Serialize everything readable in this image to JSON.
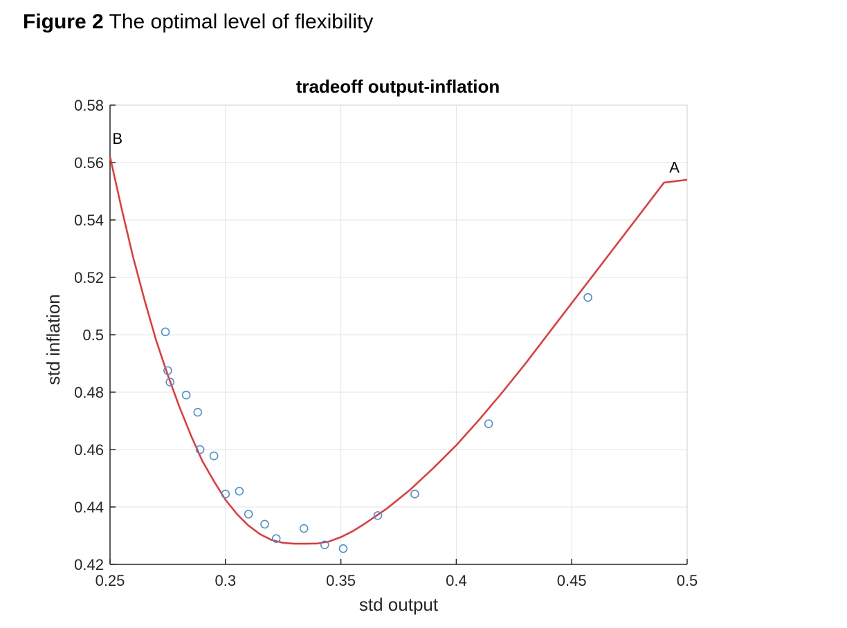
{
  "figure": {
    "label": "Figure 2",
    "caption": " The optimal level of flexibility"
  },
  "chart_data": {
    "type": "scatter",
    "title": "tradeoff output-inflation",
    "xlabel": "std output",
    "ylabel": "std inflation",
    "xlim": [
      0.25,
      0.5
    ],
    "ylim": [
      0.42,
      0.58
    ],
    "xticks": [
      0.25,
      0.3,
      0.35,
      0.4,
      0.45,
      0.5
    ],
    "xtick_labels": [
      "0.25",
      "0.3",
      "0.35",
      "0.4",
      "0.45",
      "0.5"
    ],
    "yticks": [
      0.42,
      0.44,
      0.46,
      0.48,
      0.5,
      0.52,
      0.54,
      0.56,
      0.58
    ],
    "ytick_labels": [
      "0.42",
      "0.44",
      "0.46",
      "0.48",
      "0.5",
      "0.52",
      "0.54",
      "0.56",
      "0.58"
    ],
    "grid": true,
    "series": [
      {
        "name": "observations",
        "kind": "scatter",
        "marker": "circle-open",
        "color": "#4a90d9",
        "points": [
          [
            0.274,
            0.501
          ],
          [
            0.275,
            0.4875
          ],
          [
            0.276,
            0.4835
          ],
          [
            0.283,
            0.479
          ],
          [
            0.288,
            0.473
          ],
          [
            0.289,
            0.46
          ],
          [
            0.295,
            0.4578
          ],
          [
            0.3,
            0.4445
          ],
          [
            0.306,
            0.4455
          ],
          [
            0.31,
            0.4375
          ],
          [
            0.317,
            0.434
          ],
          [
            0.322,
            0.429
          ],
          [
            0.334,
            0.4325
          ],
          [
            0.343,
            0.4268
          ],
          [
            0.351,
            0.4255
          ],
          [
            0.366,
            0.437
          ],
          [
            0.382,
            0.4445
          ],
          [
            0.414,
            0.469
          ],
          [
            0.457,
            0.513
          ]
        ]
      },
      {
        "name": "fitted tradeoff",
        "kind": "line",
        "color": "#ee3333",
        "points": [
          [
            0.25,
            0.562
          ],
          [
            0.255,
            0.544
          ],
          [
            0.26,
            0.527
          ],
          [
            0.265,
            0.512
          ],
          [
            0.27,
            0.498
          ],
          [
            0.275,
            0.486
          ],
          [
            0.28,
            0.475
          ],
          [
            0.285,
            0.465
          ],
          [
            0.29,
            0.456
          ],
          [
            0.295,
            0.449
          ],
          [
            0.3,
            0.4425
          ],
          [
            0.305,
            0.4375
          ],
          [
            0.31,
            0.4335
          ],
          [
            0.315,
            0.4305
          ],
          [
            0.32,
            0.4285
          ],
          [
            0.325,
            0.4275
          ],
          [
            0.33,
            0.4272
          ],
          [
            0.335,
            0.4272
          ],
          [
            0.34,
            0.4273
          ],
          [
            0.345,
            0.428
          ],
          [
            0.35,
            0.4295
          ],
          [
            0.355,
            0.4315
          ],
          [
            0.36,
            0.434
          ],
          [
            0.37,
            0.4395
          ],
          [
            0.38,
            0.446
          ],
          [
            0.39,
            0.4535
          ],
          [
            0.4,
            0.4615
          ],
          [
            0.41,
            0.4705
          ],
          [
            0.42,
            0.48
          ],
          [
            0.43,
            0.49
          ],
          [
            0.44,
            0.5005
          ],
          [
            0.45,
            0.511
          ],
          [
            0.46,
            0.5215
          ],
          [
            0.47,
            0.532
          ],
          [
            0.48,
            0.5425
          ],
          [
            0.49,
            0.553
          ],
          [
            0.5,
            0.554
          ]
        ]
      }
    ],
    "annotations": [
      {
        "text": "B",
        "x": 0.251,
        "y": 0.5665
      },
      {
        "text": "A",
        "x": 0.4945,
        "y": 0.5565
      }
    ]
  }
}
